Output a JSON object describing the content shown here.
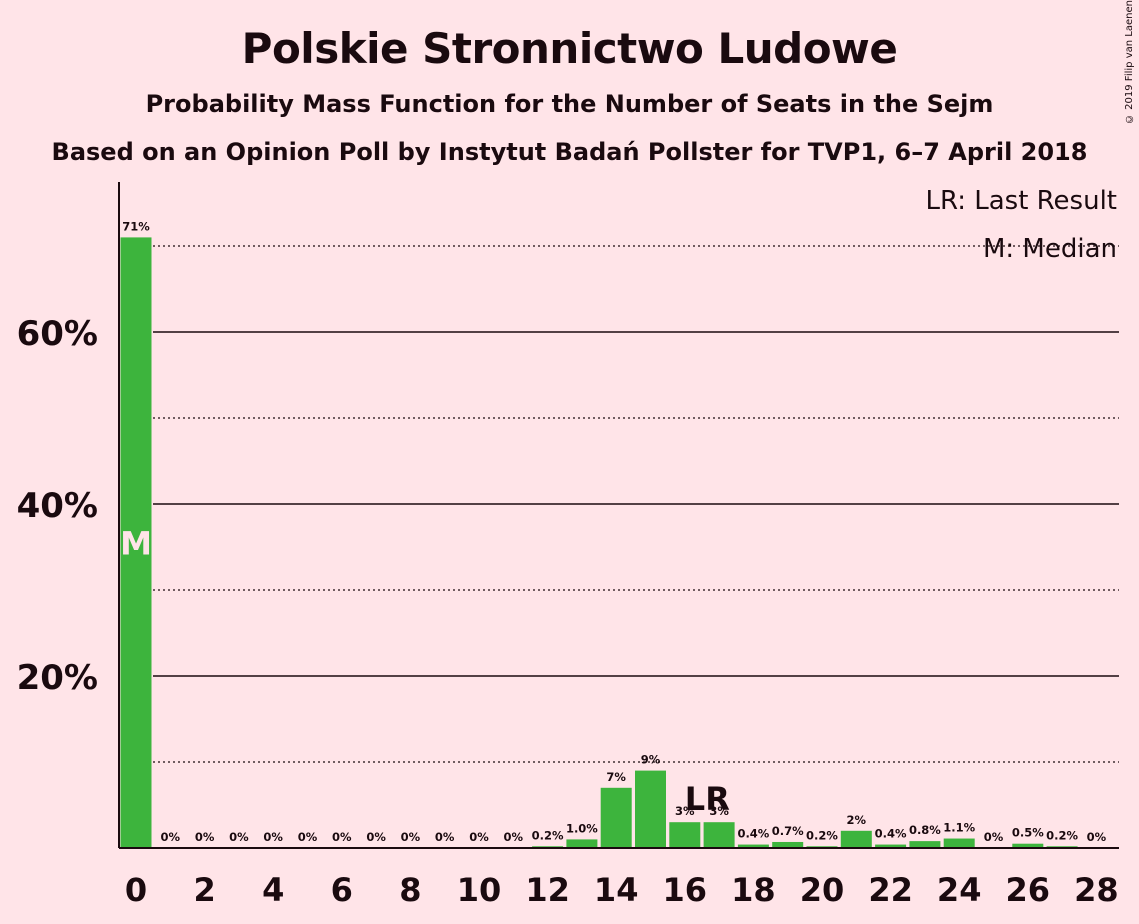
{
  "title": "Polskie Stronnictwo Ludowe",
  "subtitle": "Probability Mass Function for the Number of Seats in the Sejm",
  "subtitle2": "Based on an Opinion Poll by Instytut Badań Pollster for TVP1, 6–7 April 2018",
  "copyright": "© 2019 Filip van Laenen",
  "colors": {
    "bar": "#3DB43D",
    "background": "#FFE4E8",
    "text": "#1a0a0f",
    "median_label": "#FFE4E8"
  },
  "chart_data": {
    "type": "bar",
    "x": [
      0,
      1,
      2,
      3,
      4,
      5,
      6,
      7,
      8,
      9,
      10,
      11,
      12,
      13,
      14,
      15,
      16,
      17,
      18,
      19,
      20,
      21,
      22,
      23,
      24,
      25,
      26,
      27,
      28
    ],
    "values": [
      71,
      0,
      0,
      0,
      0,
      0,
      0,
      0,
      0,
      0,
      0,
      0,
      0.2,
      1.0,
      7,
      9,
      3,
      3,
      0.4,
      0.7,
      0.2,
      2,
      0.4,
      0.8,
      1.1,
      0,
      0.5,
      0.2,
      0
    ],
    "value_labels": [
      "71%",
      "0%",
      "0%",
      "0%",
      "0%",
      "0%",
      "0%",
      "0%",
      "0%",
      "0%",
      "0%",
      "0%",
      "0.2%",
      "1.0%",
      "7%",
      "9%",
      "3%",
      "3%",
      "0.4%",
      "0.7%",
      "0.2%",
      "2%",
      "0.4%",
      "0.8%",
      "1.1%",
      "0%",
      "0.5%",
      "0.2%",
      "0%"
    ],
    "x_tick_labels": [
      "0",
      "2",
      "4",
      "6",
      "8",
      "10",
      "12",
      "14",
      "16",
      "18",
      "20",
      "22",
      "24",
      "26",
      "28"
    ],
    "x_ticks": [
      0,
      2,
      4,
      6,
      8,
      10,
      12,
      14,
      16,
      18,
      20,
      22,
      24,
      26,
      28
    ],
    "y_tick_labels": [
      "20%",
      "40%",
      "60%"
    ],
    "y_ticks": [
      20,
      40,
      60
    ],
    "y_minor_gridlines": [
      10,
      30,
      50,
      70
    ],
    "ylim": [
      0,
      77
    ],
    "median": 0,
    "median_label": "M",
    "last_result": 16,
    "last_result_label": "LR",
    "legend": [
      "LR: Last Result",
      "M: Median"
    ],
    "legend_position": "top-right",
    "xlabel": "",
    "ylabel": ""
  }
}
